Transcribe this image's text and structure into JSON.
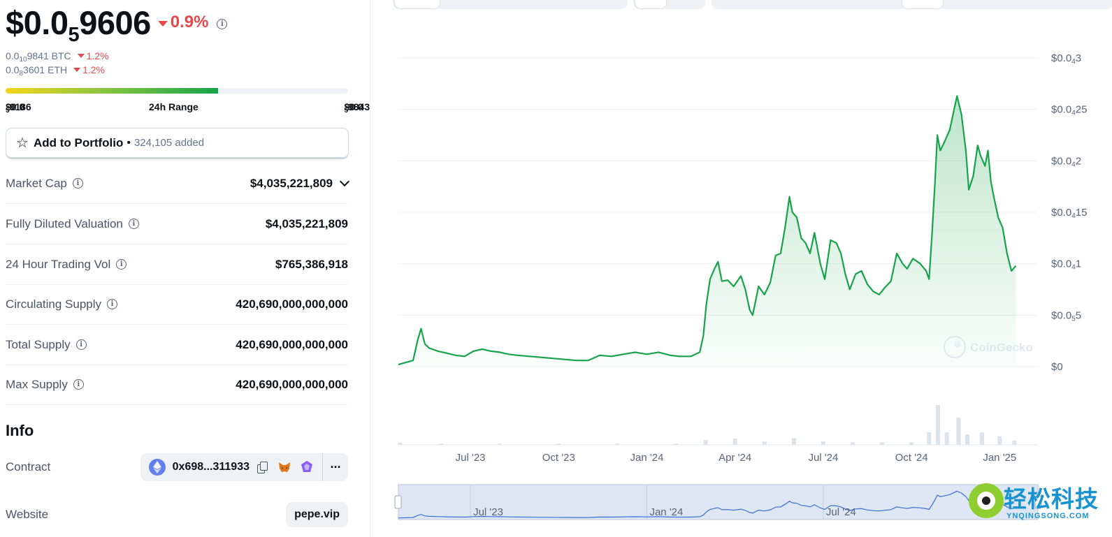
{
  "price": {
    "prefix": "$0.0",
    "zeros": "5",
    "digits": "9606",
    "change": "0.9%",
    "direction": "down"
  },
  "alt_prices": [
    {
      "prefix": "0.0",
      "zeros": "10",
      "digits": "9841 BTC",
      "change": "1.2%"
    },
    {
      "prefix": "0.0",
      "zeros": "8",
      "digits": "3601 ETH",
      "change": "1.2%"
    }
  ],
  "range": {
    "low_prefix": "$0.0",
    "low_zeros": "5",
    "low_digits": "9186",
    "label": "24h Range",
    "high_prefix": "$0.0",
    "high_zeros": "5",
    "high_digits": "9843",
    "position_fraction": 0.62
  },
  "portfolio": {
    "label": "Add to Portfolio",
    "separator": "•",
    "added": "324,105 added"
  },
  "stats": [
    {
      "label": "Market Cap",
      "value": "$4,035,221,809",
      "expandable": true
    },
    {
      "label": "Fully Diluted Valuation",
      "value": "$4,035,221,809"
    },
    {
      "label": "24 Hour Trading Vol",
      "value": "$765,386,918"
    },
    {
      "label": "Circulating Supply",
      "value": "420,690,000,000,000"
    },
    {
      "label": "Total Supply",
      "value": "420,690,000,000,000"
    },
    {
      "label": "Max Supply",
      "value": "420,690,000,000,000"
    }
  ],
  "info": {
    "title": "Info",
    "contract_label": "Contract",
    "contract_address": "0x698...311933",
    "more": "···",
    "website_label": "Website",
    "website": "pepe.vip"
  },
  "chart_data": {
    "type": "area",
    "x_ticks": [
      "Jul '23",
      "Oct '23",
      "Jan '24",
      "Apr '24",
      "Jul '24",
      "Oct '24",
      "Jan '25"
    ],
    "x_tick_months": [
      2.0,
      5.0,
      8.0,
      11.0,
      14.0,
      17.0,
      20.0
    ],
    "x_range_months": [
      -0.45,
      21.3
    ],
    "y_ticks": [
      {
        "pre": "$0",
        "sub": "",
        "post": "",
        "value": 0
      },
      {
        "pre": "$0.0",
        "sub": "5",
        "post": "5",
        "value": 5
      },
      {
        "pre": "$0.0",
        "sub": "4",
        "post": "1",
        "value": 10
      },
      {
        "pre": "$0.0",
        "sub": "4",
        "post": "15",
        "value": 15
      },
      {
        "pre": "$0.0",
        "sub": "4",
        "post": "2",
        "value": 20
      },
      {
        "pre": "$0.0",
        "sub": "4",
        "post": "25",
        "value": 25
      },
      {
        "pre": "$0.0",
        "sub": "4",
        "post": "3",
        "value": 30
      }
    ],
    "y_unit": "millionths of a dollar",
    "ylim": [
      0,
      30
    ],
    "series": [
      {
        "points": [
          [
            -0.45,
            0.2
          ],
          [
            -0.2,
            0.4
          ],
          [
            0.05,
            0.6
          ],
          [
            0.2,
            2.5
          ],
          [
            0.32,
            3.7
          ],
          [
            0.45,
            2.2
          ],
          [
            0.6,
            1.8
          ],
          [
            0.9,
            1.5
          ],
          [
            1.2,
            1.3
          ],
          [
            1.5,
            1.1
          ],
          [
            1.8,
            1.0
          ],
          [
            2.1,
            1.5
          ],
          [
            2.4,
            1.7
          ],
          [
            2.7,
            1.5
          ],
          [
            3.0,
            1.4
          ],
          [
            3.3,
            1.2
          ],
          [
            3.6,
            1.1
          ],
          [
            4.0,
            1.0
          ],
          [
            4.4,
            0.9
          ],
          [
            4.8,
            0.8
          ],
          [
            5.2,
            0.7
          ],
          [
            5.6,
            0.6
          ],
          [
            6.0,
            0.6
          ],
          [
            6.4,
            1.1
          ],
          [
            6.8,
            1.0
          ],
          [
            7.2,
            1.2
          ],
          [
            7.6,
            1.4
          ],
          [
            8.0,
            1.2
          ],
          [
            8.4,
            1.4
          ],
          [
            8.8,
            1.1
          ],
          [
            9.1,
            1.0
          ],
          [
            9.5,
            1.0
          ],
          [
            9.8,
            1.4
          ],
          [
            9.92,
            3.0
          ],
          [
            10.02,
            6.0
          ],
          [
            10.15,
            8.5
          ],
          [
            10.3,
            9.5
          ],
          [
            10.42,
            10.2
          ],
          [
            10.55,
            8.3
          ],
          [
            10.75,
            8.4
          ],
          [
            10.95,
            7.8
          ],
          [
            11.2,
            8.8
          ],
          [
            11.35,
            7.5
          ],
          [
            11.5,
            5.5
          ],
          [
            11.6,
            5.0
          ],
          [
            11.8,
            7.8
          ],
          [
            12.0,
            7.0
          ],
          [
            12.2,
            8.2
          ],
          [
            12.38,
            10.8
          ],
          [
            12.55,
            11.0
          ],
          [
            12.7,
            13.5
          ],
          [
            12.85,
            16.5
          ],
          [
            12.95,
            15.0
          ],
          [
            13.1,
            14.5
          ],
          [
            13.25,
            12.5
          ],
          [
            13.4,
            12.0
          ],
          [
            13.55,
            11.0
          ],
          [
            13.7,
            13.0
          ],
          [
            13.9,
            10.0
          ],
          [
            14.05,
            8.5
          ],
          [
            14.25,
            12.3
          ],
          [
            14.45,
            12.0
          ],
          [
            14.6,
            11.0
          ],
          [
            14.75,
            9.0
          ],
          [
            14.9,
            7.5
          ],
          [
            15.1,
            9.0
          ],
          [
            15.3,
            9.3
          ],
          [
            15.5,
            8.0
          ],
          [
            15.7,
            7.3
          ],
          [
            15.9,
            7.0
          ],
          [
            16.1,
            7.7
          ],
          [
            16.3,
            8.3
          ],
          [
            16.5,
            11.0
          ],
          [
            16.7,
            10.0
          ],
          [
            16.85,
            9.5
          ],
          [
            17.05,
            10.5
          ],
          [
            17.3,
            10.0
          ],
          [
            17.5,
            9.3
          ],
          [
            17.6,
            8.5
          ],
          [
            17.7,
            13.0
          ],
          [
            17.8,
            18.0
          ],
          [
            17.88,
            22.5
          ],
          [
            17.98,
            21.0
          ],
          [
            18.1,
            21.7
          ],
          [
            18.3,
            23.0
          ],
          [
            18.45,
            25.0
          ],
          [
            18.55,
            26.3
          ],
          [
            18.7,
            24.5
          ],
          [
            18.85,
            21.0
          ],
          [
            18.95,
            17.2
          ],
          [
            19.1,
            18.5
          ],
          [
            19.25,
            21.5
          ],
          [
            19.35,
            20.5
          ],
          [
            19.5,
            19.5
          ],
          [
            19.6,
            21.0
          ],
          [
            19.7,
            18.0
          ],
          [
            19.8,
            16.5
          ],
          [
            19.95,
            14.5
          ],
          [
            20.1,
            13.5
          ],
          [
            20.25,
            11.0
          ],
          [
            20.4,
            9.3
          ],
          [
            20.55,
            9.8
          ]
        ]
      }
    ],
    "volume": [
      [
        -0.4,
        0.5
      ],
      [
        1,
        0.3
      ],
      [
        3,
        0.3
      ],
      [
        5,
        0.3
      ],
      [
        7,
        0.3
      ],
      [
        9,
        0.3
      ],
      [
        10,
        1.2
      ],
      [
        11,
        1.5
      ],
      [
        12,
        0.8
      ],
      [
        13,
        1.6
      ],
      [
        14,
        0.8
      ],
      [
        15,
        0.6
      ],
      [
        16,
        0.6
      ],
      [
        17,
        0.6
      ],
      [
        17.6,
        3.0
      ],
      [
        17.9,
        9.5
      ],
      [
        18.2,
        3.0
      ],
      [
        18.6,
        6.5
      ],
      [
        18.9,
        2.5
      ],
      [
        19.4,
        3.0
      ],
      [
        20.0,
        2.0
      ],
      [
        20.5,
        1.0
      ]
    ],
    "brush_ticks": [
      "Jul '23",
      "Jan '24",
      "Jul '24"
    ],
    "brush_tick_months": [
      2.0,
      8.0,
      14.0
    ]
  },
  "watermark": {
    "brand": "CoinGecko",
    "cn_text": "轻松科技",
    "cn_sub": "YNQINGSONG.COM"
  },
  "colors": {
    "line": "#16a34a",
    "down": "#e5484d",
    "text": "#0d1217",
    "muted": "#64748b"
  }
}
